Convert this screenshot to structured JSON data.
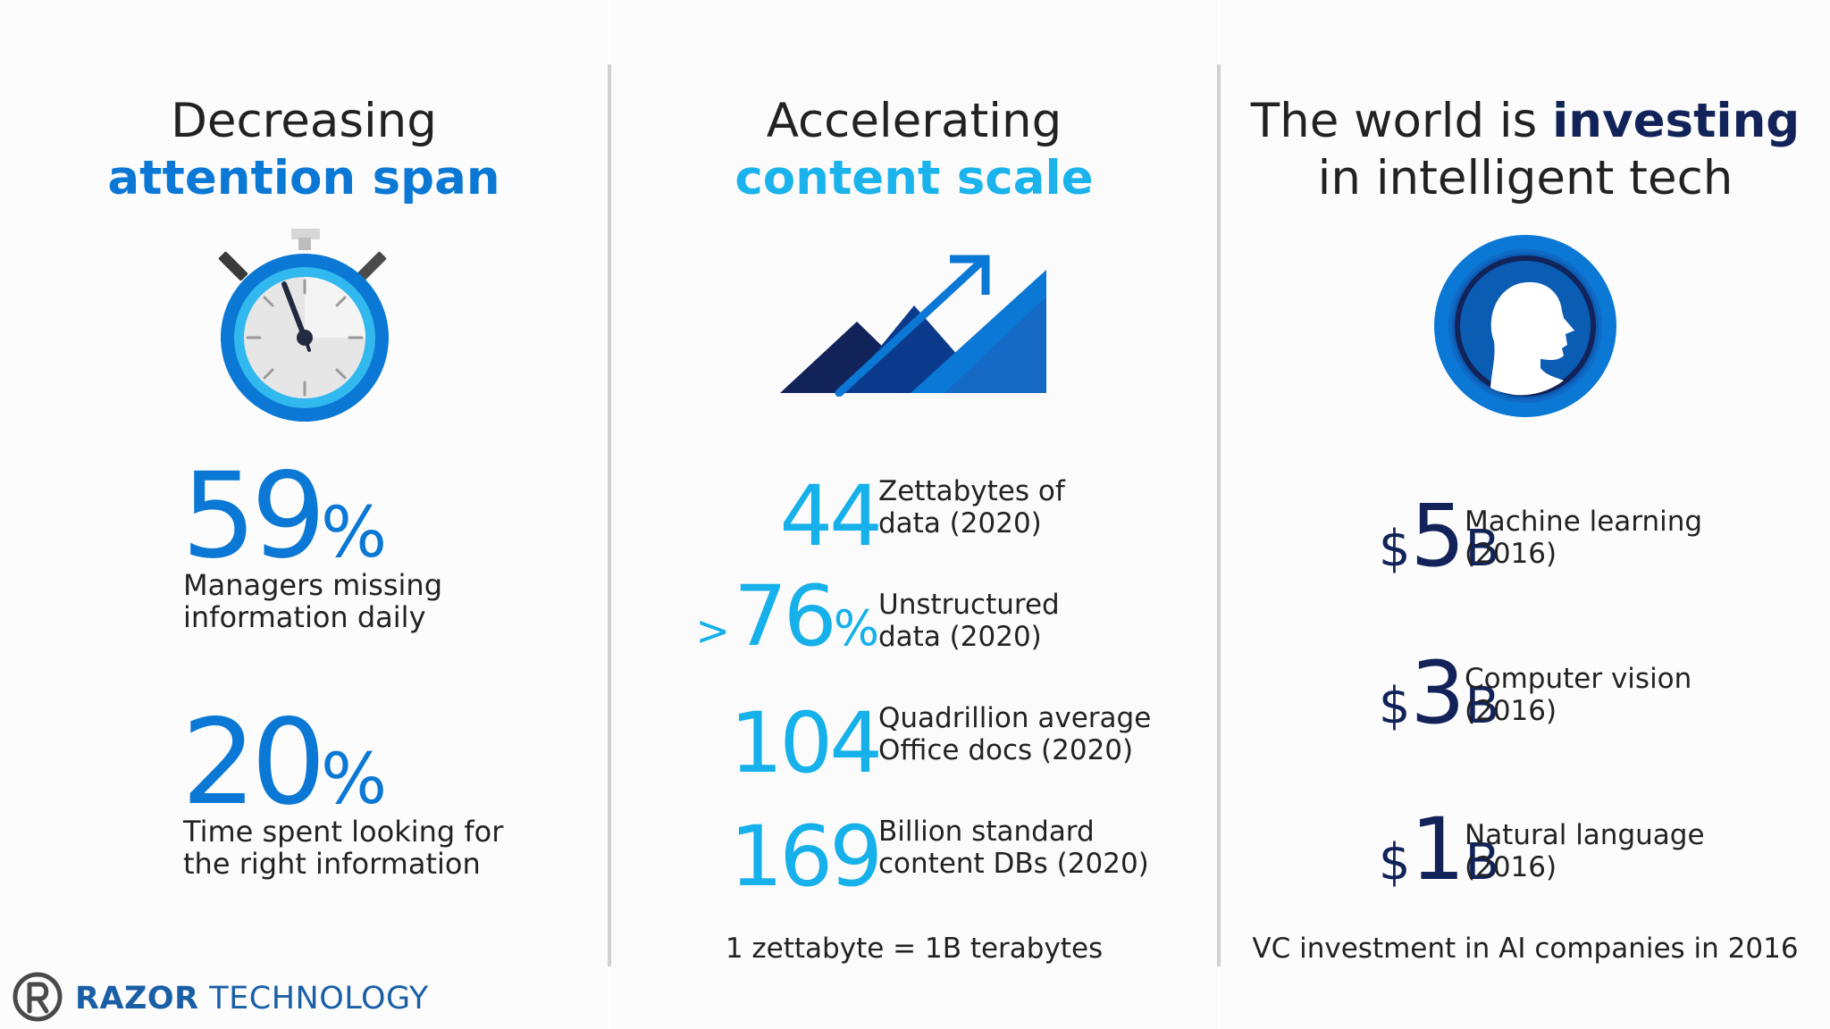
{
  "col1": {
    "heading_line1": "Decreasing",
    "heading_line2": "attention span",
    "stats": [
      {
        "value": "59",
        "unit": "%",
        "caption_line1": "Managers missing",
        "caption_line2": "information daily"
      },
      {
        "value": "20",
        "unit": "%",
        "caption_line1": "Time spent looking for",
        "caption_line2": "the right information"
      }
    ]
  },
  "col2": {
    "heading_line1": "Accelerating",
    "heading_line2": "content scale",
    "stats": [
      {
        "prefix": "",
        "value": "44",
        "unit": "",
        "label_line1": "Zettabytes of",
        "label_line2": "data (2020)"
      },
      {
        "prefix": ">",
        "value": "76",
        "unit": "%",
        "label_line1": "Unstructured",
        "label_line2": "data (2020)"
      },
      {
        "prefix": "",
        "value": "104",
        "unit": "",
        "label_line1": "Quadrillion average",
        "label_line2": "Office docs (2020)"
      },
      {
        "prefix": "",
        "value": "169",
        "unit": "",
        "label_line1": "Billion standard",
        "label_line2": "content DBs (2020)"
      }
    ],
    "footnote": "1 zettabyte = 1B terabytes"
  },
  "col3": {
    "heading_pre": "The world is ",
    "heading_emph": "investing",
    "heading_line2": "in intelligent tech",
    "stats": [
      {
        "currency": "$",
        "value": "5",
        "unit": "B",
        "label_line1": "Machine learning",
        "label_line2": "(2016)"
      },
      {
        "currency": "$",
        "value": "3",
        "unit": "B",
        "label_line1": "Computer vision",
        "label_line2": "(2016)"
      },
      {
        "currency": "$",
        "value": "1",
        "unit": "B",
        "label_line1": "Natural language",
        "label_line2": "(2016)"
      }
    ],
    "footnote": "VC investment in AI companies in 2016"
  },
  "logo": {
    "brand": "RAZOR",
    "suffix": "TECHNOLOGY"
  },
  "colors": {
    "blue": "#0a78d4",
    "cyan": "#1ab3eb",
    "navy": "#12235a"
  }
}
